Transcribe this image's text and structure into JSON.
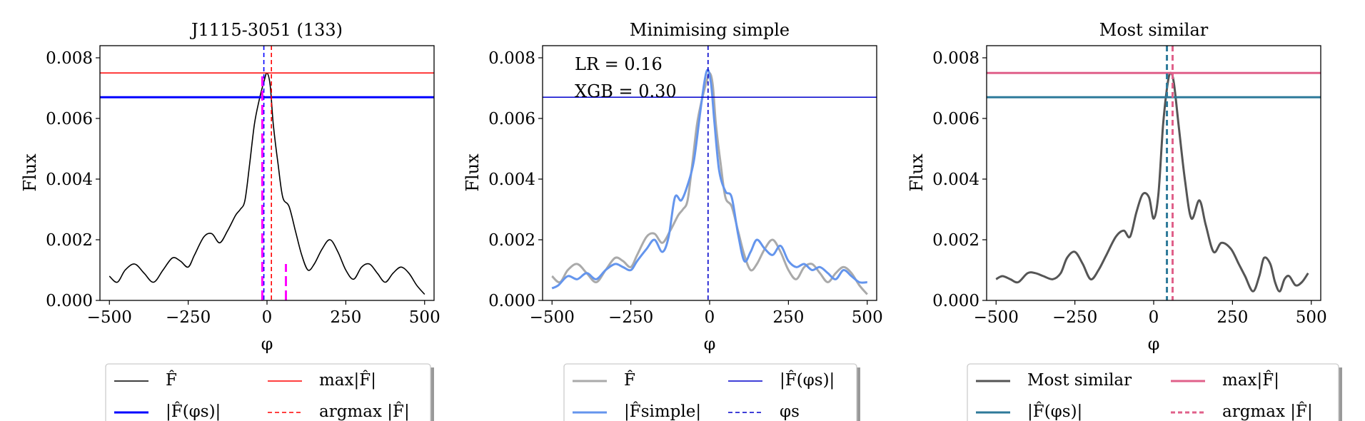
{
  "panels": [
    {
      "title": "J1115-3051 (133)",
      "annotations": [],
      "legend": [
        {
          "label": "F̂",
          "color": "#000000",
          "dash": "",
          "width": 1.6
        },
        {
          "label": "max|F̂|",
          "color": "#ff0000",
          "dash": "",
          "width": 1.6
        },
        {
          "label": "|F̂(φs)|",
          "color": "#0000ff",
          "dash": "",
          "width": 3
        },
        {
          "label": "argmax |F̂|",
          "color": "#ff0000",
          "dash": "6,4",
          "width": 1.6
        }
      ]
    },
    {
      "title": "Minimising simple",
      "annotations": [
        "LR = 0.16",
        "XGB = 0.30"
      ],
      "legend": [
        {
          "label": "F̂",
          "color": "#aaaaaa",
          "dash": "",
          "width": 3
        },
        {
          "label": "|F̂(φs)|",
          "color": "#0000cc",
          "dash": "",
          "width": 1.6
        },
        {
          "label": "|F̂simple|",
          "color": "#6495ed",
          "dash": "",
          "width": 3
        },
        {
          "label": "φs",
          "color": "#0000cc",
          "dash": "6,4",
          "width": 1.6
        }
      ]
    },
    {
      "title": "Most similar",
      "annotations": [],
      "legend": [
        {
          "label": "Most similar",
          "color": "#555555",
          "dash": "",
          "width": 3
        },
        {
          "label": "max|F̂|",
          "color": "#e0608a",
          "dash": "",
          "width": 3
        },
        {
          "label": "|F̂(φs)|",
          "color": "#2e7a9a",
          "dash": "",
          "width": 3
        },
        {
          "label": "argmax |F̂|",
          "color": "#e0608a",
          "dash": "6,4",
          "width": 3
        }
      ]
    }
  ],
  "chart_data": [
    {
      "type": "line",
      "title": "J1115-3051 (133)",
      "xlabel": "φ",
      "ylabel": "Flux",
      "xlim": [
        -530,
        530
      ],
      "ylim": [
        0,
        0.0084
      ],
      "xticks": [
        -500,
        -250,
        0,
        250,
        500
      ],
      "xtick_labels": [
        "−500",
        "−250",
        "0",
        "250",
        "500"
      ],
      "yticks": [
        0,
        0.002,
        0.004,
        0.006,
        0.008
      ],
      "ytick_labels": [
        "0.000",
        "0.002",
        "0.004",
        "0.006",
        "0.008"
      ],
      "series": [
        {
          "name": "F̂",
          "color": "#000000",
          "width": 1.6,
          "x": [
            -500,
            -475,
            -450,
            -420,
            -390,
            -360,
            -330,
            -300,
            -275,
            -250,
            -230,
            -200,
            -175,
            -150,
            -125,
            -100,
            -85,
            -70,
            -55,
            -40,
            -25,
            -10,
            0,
            10,
            20,
            35,
            50,
            70,
            90,
            110,
            130,
            150,
            175,
            200,
            225,
            250,
            275,
            300,
            325,
            350,
            375,
            400,
            425,
            450,
            475,
            500
          ],
          "y": [
            0.0008,
            0.0006,
            0.001,
            0.0012,
            0.0009,
            0.0006,
            0.001,
            0.0014,
            0.0013,
            0.0011,
            0.0015,
            0.0021,
            0.0022,
            0.0019,
            0.0023,
            0.0028,
            0.003,
            0.0033,
            0.0045,
            0.0058,
            0.0066,
            0.0072,
            0.0075,
            0.0071,
            0.0058,
            0.0045,
            0.0034,
            0.0031,
            0.0023,
            0.0015,
            0.001,
            0.0012,
            0.0017,
            0.002,
            0.0016,
            0.001,
            0.0007,
            0.0011,
            0.0012,
            0.0009,
            0.0006,
            0.0009,
            0.0011,
            0.0009,
            0.0005,
            0.0002
          ]
        }
      ],
      "hlines": [
        {
          "name": "max|F̂|",
          "y": 0.0075,
          "color": "#ff0000",
          "width": 1.6,
          "dash": ""
        },
        {
          "name": "|F̂(φs)|",
          "y": 0.0067,
          "color": "#0000ff",
          "width": 3,
          "dash": ""
        }
      ],
      "vlines": [
        {
          "name": "φs",
          "x": -10,
          "color": "#0000ff",
          "width": 1.6,
          "dash": "6,4"
        },
        {
          "name": "argmax |F̂|",
          "x": 14,
          "color": "#ff0000",
          "width": 1.6,
          "dash": "6,4"
        }
      ],
      "segments": [
        {
          "x": -15,
          "y0": 0,
          "y1": 0.0074,
          "color": "#ff00ff",
          "width": 3,
          "dash": "14,6"
        },
        {
          "x": 60,
          "y0": 0,
          "y1": 0.0012,
          "color": "#ff00ff",
          "width": 3,
          "dash": "14,6"
        }
      ]
    },
    {
      "type": "line",
      "title": "Minimising simple",
      "xlabel": "φ",
      "ylabel": "Flux",
      "xlim": [
        -530,
        530
      ],
      "ylim": [
        0,
        0.0084
      ],
      "xticks": [
        -500,
        -250,
        0,
        250,
        500
      ],
      "xtick_labels": [
        "−500",
        "−250",
        "0",
        "250",
        "500"
      ],
      "yticks": [
        0,
        0.002,
        0.004,
        0.006,
        0.008
      ],
      "ytick_labels": [
        "0.000",
        "0.002",
        "0.004",
        "0.006",
        "0.008"
      ],
      "series": [
        {
          "name": "F̂",
          "color": "#aaaaaa",
          "width": 3,
          "x": [
            -500,
            -475,
            -450,
            -420,
            -390,
            -360,
            -330,
            -300,
            -275,
            -250,
            -230,
            -200,
            -175,
            -150,
            -125,
            -100,
            -85,
            -70,
            -55,
            -40,
            -25,
            -10,
            0,
            10,
            20,
            35,
            50,
            70,
            90,
            110,
            130,
            150,
            175,
            200,
            225,
            250,
            275,
            300,
            325,
            350,
            375,
            400,
            425,
            450,
            475,
            500
          ],
          "y": [
            0.0008,
            0.0006,
            0.001,
            0.0012,
            0.0009,
            0.0006,
            0.001,
            0.0014,
            0.0013,
            0.0011,
            0.0015,
            0.0021,
            0.0022,
            0.0019,
            0.0023,
            0.0028,
            0.003,
            0.0033,
            0.0045,
            0.0058,
            0.0066,
            0.0072,
            0.0075,
            0.0071,
            0.0058,
            0.0045,
            0.0034,
            0.0031,
            0.0023,
            0.0015,
            0.001,
            0.0012,
            0.0017,
            0.002,
            0.0016,
            0.001,
            0.0007,
            0.0011,
            0.0012,
            0.0009,
            0.0006,
            0.0009,
            0.0011,
            0.0009,
            0.0005,
            0.0002
          ]
        },
        {
          "name": "|F̂simple|",
          "color": "#6495ed",
          "width": 3,
          "x": [
            -500,
            -480,
            -450,
            -420,
            -390,
            -360,
            -330,
            -300,
            -275,
            -250,
            -230,
            -200,
            -175,
            -150,
            -130,
            -110,
            -90,
            -70,
            -50,
            -30,
            -15,
            -5,
            5,
            15,
            30,
            50,
            70,
            90,
            110,
            130,
            150,
            175,
            200,
            225,
            250,
            275,
            300,
            325,
            350,
            375,
            400,
            425,
            450,
            475,
            500
          ],
          "y": [
            0.0004,
            0.0005,
            0.0008,
            0.0007,
            0.0009,
            0.0007,
            0.001,
            0.0012,
            0.0011,
            0.001,
            0.0013,
            0.0017,
            0.002,
            0.0016,
            0.0021,
            0.0034,
            0.0033,
            0.0038,
            0.0046,
            0.0062,
            0.0073,
            0.0076,
            0.0071,
            0.0059,
            0.0043,
            0.0036,
            0.0034,
            0.0022,
            0.0013,
            0.0016,
            0.002,
            0.0017,
            0.0015,
            0.0018,
            0.0013,
            0.0011,
            0.0012,
            0.001,
            0.0011,
            0.0009,
            0.0007,
            0.001,
            0.0008,
            0.0006,
            0.0006
          ]
        }
      ],
      "hlines": [
        {
          "name": "|F̂(φs)|",
          "y": 0.0067,
          "color": "#0000cc",
          "width": 1.6,
          "dash": ""
        }
      ],
      "vlines": [
        {
          "name": "φs",
          "x": -5,
          "color": "#0000cc",
          "width": 1.6,
          "dash": "6,4"
        }
      ],
      "segments": []
    },
    {
      "type": "line",
      "title": "Most similar",
      "xlabel": "φ",
      "ylabel": "Flux",
      "xlim": [
        -530,
        530
      ],
      "ylim": [
        0,
        0.0084
      ],
      "xticks": [
        -500,
        -250,
        0,
        250,
        500
      ],
      "xtick_labels": [
        "−500",
        "−250",
        "0",
        "250",
        "500"
      ],
      "yticks": [
        0,
        0.002,
        0.004,
        0.006,
        0.008
      ],
      "ytick_labels": [
        "0.000",
        "0.002",
        "0.004",
        "0.006",
        "0.008"
      ],
      "series": [
        {
          "name": "Most similar",
          "color": "#555555",
          "width": 3,
          "x": [
            -500,
            -480,
            -455,
            -430,
            -400,
            -375,
            -350,
            -320,
            -295,
            -275,
            -250,
            -225,
            -200,
            -175,
            -150,
            -120,
            -95,
            -75,
            -55,
            -35,
            -15,
            0,
            15,
            30,
            45,
            55,
            65,
            80,
            100,
            120,
            145,
            165,
            190,
            215,
            245,
            270,
            290,
            315,
            335,
            350,
            370,
            385,
            400,
            415,
            430,
            450,
            470,
            490
          ],
          "y": [
            0.0007,
            0.0008,
            0.0007,
            0.0006,
            0.0009,
            0.0009,
            0.0008,
            0.0007,
            0.0009,
            0.0014,
            0.0016,
            0.0012,
            0.0007,
            0.001,
            0.0015,
            0.0021,
            0.0023,
            0.0021,
            0.0029,
            0.0035,
            0.0034,
            0.0027,
            0.0035,
            0.0058,
            0.0072,
            0.0075,
            0.0071,
            0.0057,
            0.0039,
            0.0027,
            0.0033,
            0.0025,
            0.0016,
            0.0019,
            0.0017,
            0.0012,
            0.0008,
            0.0003,
            0.0008,
            0.0014,
            0.0012,
            0.0006,
            0.0003,
            0.0007,
            0.0008,
            0.0005,
            0.0006,
            0.0009
          ]
        }
      ],
      "hlines": [
        {
          "name": "max|F̂|",
          "y": 0.0075,
          "color": "#e0608a",
          "width": 3,
          "dash": ""
        },
        {
          "name": "|F̂(φs)|",
          "y": 0.0067,
          "color": "#2e7a9a",
          "width": 3,
          "dash": ""
        }
      ],
      "vlines": [
        {
          "name": "φs",
          "x": 42,
          "color": "#2e7a9a",
          "width": 3,
          "dash": "8,5"
        },
        {
          "name": "argmax |F̂|",
          "x": 60,
          "color": "#e0608a",
          "width": 3,
          "dash": "8,5"
        }
      ],
      "segments": []
    }
  ]
}
